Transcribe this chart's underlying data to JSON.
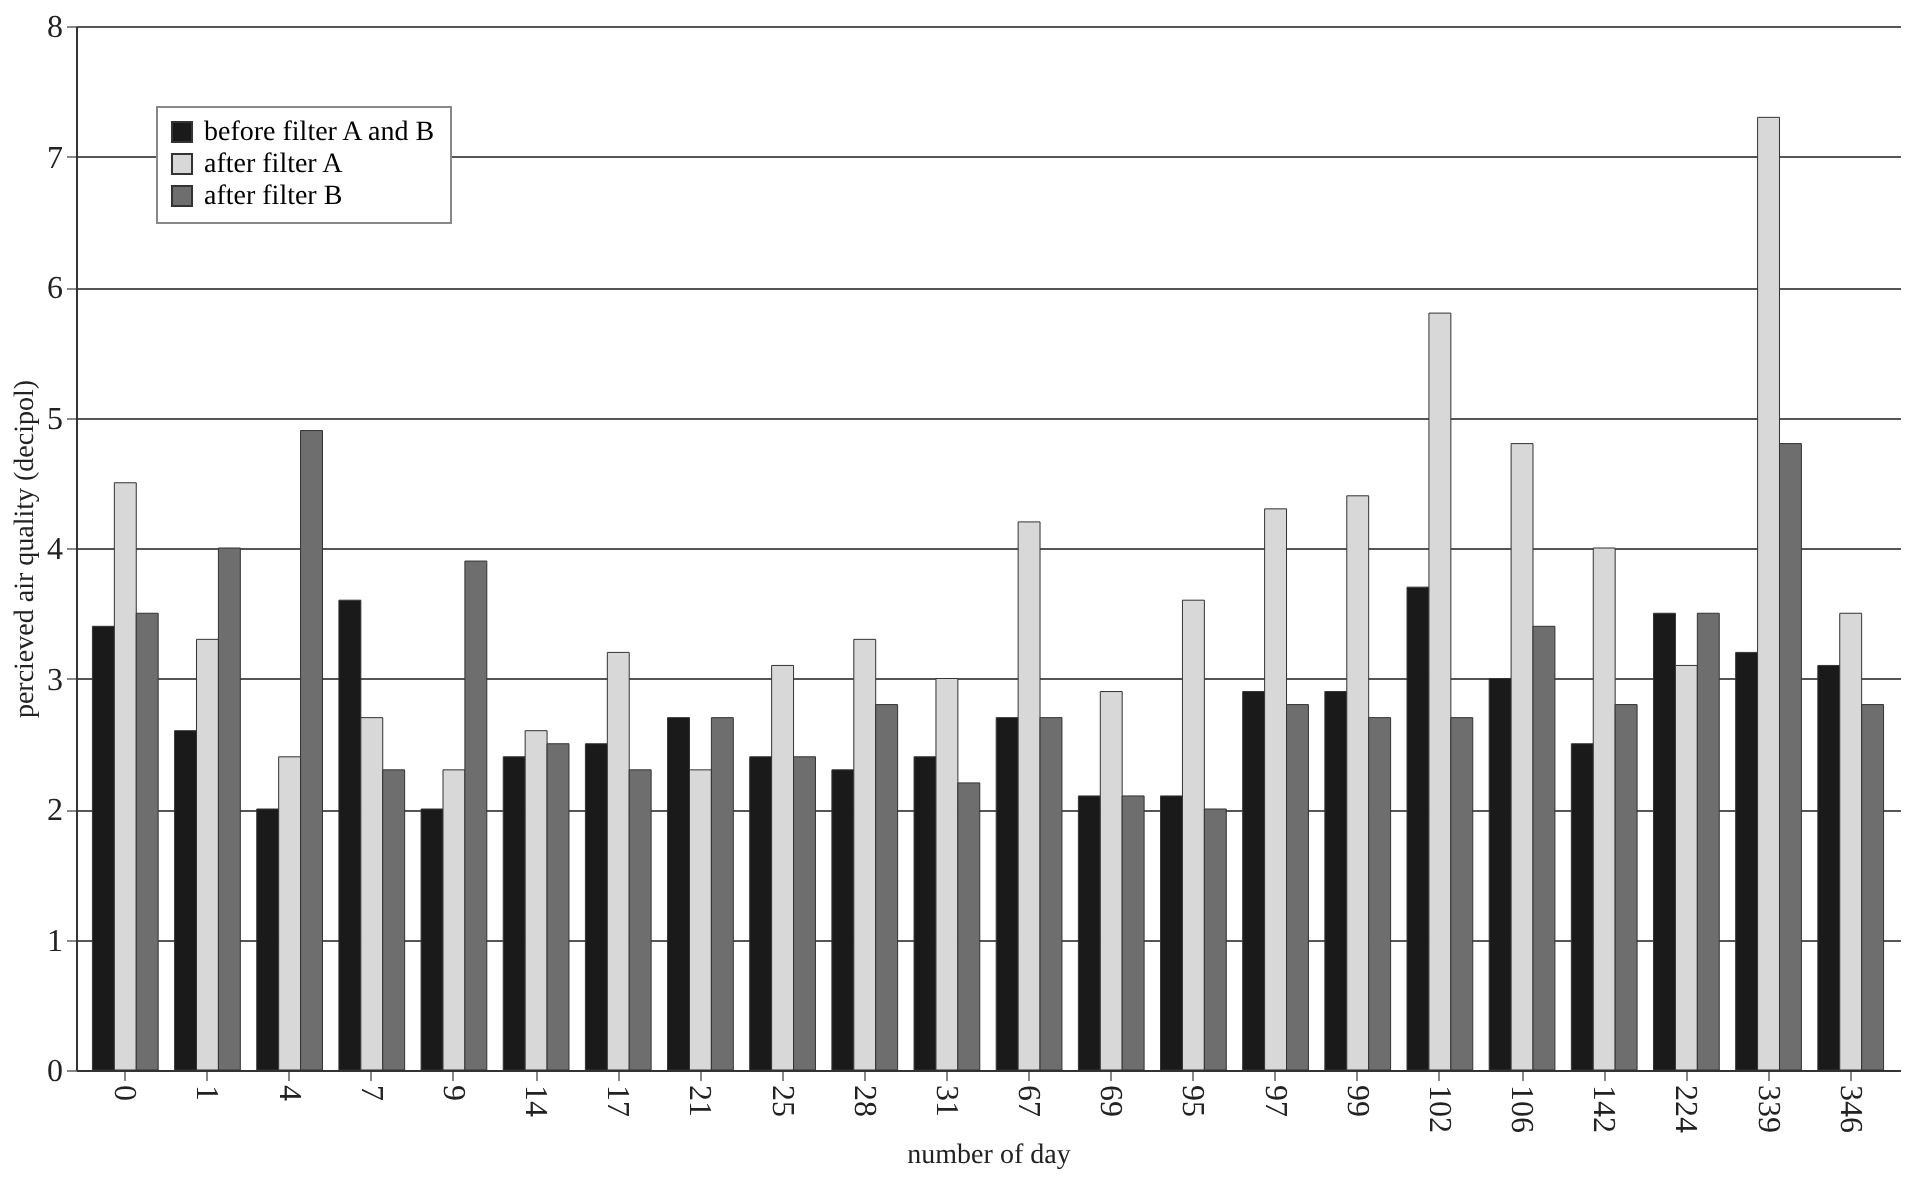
{
  "chart_data": {
    "type": "bar",
    "xlabel": "number of day",
    "ylabel": "percieved air quality (decipol)",
    "categories": [
      "0",
      "1",
      "4",
      "7",
      "9",
      "14",
      "17",
      "21",
      "25",
      "28",
      "31",
      "67",
      "69",
      "95",
      "97",
      "99",
      "102",
      "106",
      "142",
      "224",
      "339",
      "346"
    ],
    "series": [
      {
        "name": "before filter A and B",
        "color": "#1a1a1a",
        "values": [
          3.4,
          2.6,
          2.0,
          3.6,
          2.0,
          2.4,
          2.5,
          2.7,
          2.4,
          2.3,
          2.4,
          2.7,
          2.1,
          2.1,
          2.9,
          2.9,
          3.7,
          3.0,
          2.5,
          3.5,
          3.2,
          3.1
        ]
      },
      {
        "name": "after filter A",
        "color": "#d8d8d8",
        "values": [
          4.5,
          3.3,
          2.4,
          2.7,
          2.3,
          2.6,
          3.2,
          2.3,
          3.1,
          3.3,
          3.0,
          4.2,
          2.9,
          3.6,
          4.3,
          4.4,
          5.8,
          4.8,
          4.0,
          3.1,
          7.3,
          3.5
        ]
      },
      {
        "name": "after filter B",
        "color": "#6e6e6e",
        "values": [
          3.5,
          4.0,
          4.9,
          2.3,
          3.9,
          2.5,
          2.3,
          2.7,
          2.4,
          2.8,
          2.2,
          2.7,
          2.1,
          2.0,
          2.8,
          2.7,
          2.7,
          3.4,
          2.8,
          3.5,
          4.8,
          2.8
        ]
      }
    ],
    "ylim": [
      0,
      8
    ],
    "yticks": [
      0,
      1,
      2,
      3,
      4,
      5,
      6,
      7,
      8
    ],
    "grid": "y",
    "legend": "top left"
  }
}
